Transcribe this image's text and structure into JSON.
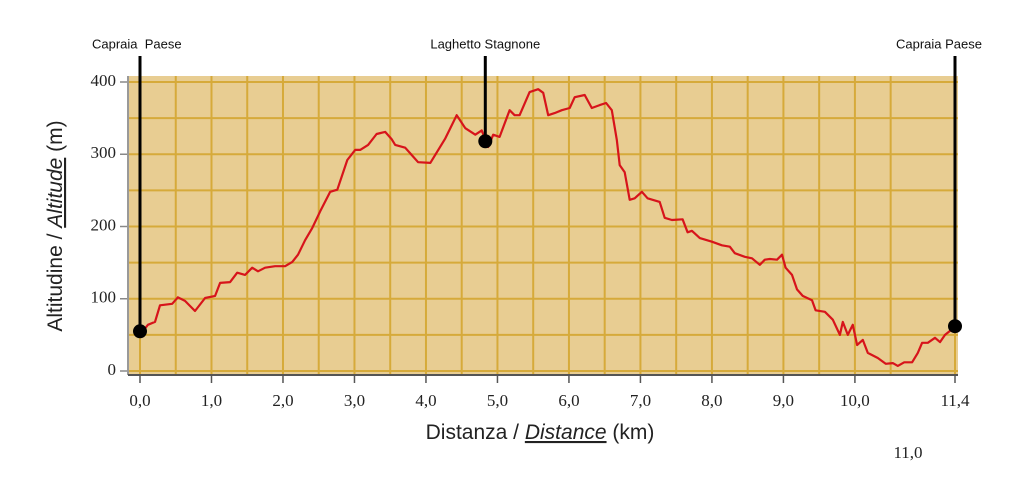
{
  "chart_data": {
    "type": "line",
    "ylabel": [
      "Altitudine / ",
      "Altitude",
      " (m)"
    ],
    "xlabel": [
      "Distanza / ",
      "Distance",
      " (km)"
    ],
    "xlim": [
      0,
      11.4
    ],
    "ylim": [
      0,
      400
    ],
    "xticks": [
      {
        "value": 0,
        "label": "0,0"
      },
      {
        "value": 1,
        "label": "1,0"
      },
      {
        "value": 2,
        "label": "2,0"
      },
      {
        "value": 3,
        "label": "3,0"
      },
      {
        "value": 4,
        "label": "4,0"
      },
      {
        "value": 5,
        "label": "5,0"
      },
      {
        "value": 6,
        "label": "6,0"
      },
      {
        "value": 7,
        "label": "7,0"
      },
      {
        "value": 8,
        "label": "8,0"
      },
      {
        "value": 9,
        "label": "9,0"
      },
      {
        "value": 10,
        "label": "10,0"
      },
      {
        "value": 11.4,
        "label": "11,4"
      }
    ],
    "yticks": [
      0,
      100,
      200,
      300,
      400
    ],
    "grid": true,
    "background": "#e8cd92",
    "grid_color": "#d6aa3a",
    "x": [
      0,
      0.11,
      0.21,
      0.28,
      0.45,
      0.53,
      0.63,
      0.77,
      0.91,
      1.05,
      1.12,
      1.26,
      1.36,
      1.47,
      1.57,
      1.65,
      1.75,
      1.89,
      2.03,
      2.13,
      2.21,
      2.31,
      2.41,
      2.52,
      2.66,
      2.76,
      2.9,
      3.01,
      3.08,
      3.19,
      3.31,
      3.43,
      3.52,
      3.57,
      3.71,
      3.8,
      3.89,
      4.06,
      4.27,
      4.43,
      4.55,
      4.69,
      4.78,
      4.87,
      4.94,
      5.03,
      5.17,
      5.24,
      5.31,
      5.45,
      5.57,
      5.64,
      5.71,
      5.8,
      5.9,
      6.01,
      6.08,
      6.22,
      6.32,
      6.43,
      6.52,
      6.6,
      6.67,
      6.71,
      6.78,
      6.85,
      6.92,
      7.02,
      7.1,
      7.27,
      7.34,
      7.44,
      7.59,
      7.66,
      7.72,
      7.83,
      8,
      8.14,
      8.25,
      8.32,
      8.46,
      8.56,
      8.67,
      8.74,
      8.81,
      8.91,
      8.98,
      9.03,
      9.12,
      9.19,
      9.27,
      9.4,
      9.45,
      9.58,
      9.69,
      9.79,
      9.83,
      9.9,
      9.97,
      10.03,
      10.11,
      10.18,
      10.32,
      10.43,
      10.53,
      10.6,
      10.69,
      10.8,
      10.88,
      10.94,
      11.02,
      11.12,
      11.19,
      11.26,
      11.4
    ],
    "series": [
      {
        "name": "Altitudine",
        "color": "#d7141b",
        "values": [
          50,
          64,
          68,
          91,
          93,
          102,
          97,
          83,
          101,
          104,
          122,
          123,
          136,
          133,
          143,
          138,
          143,
          145,
          145,
          151,
          161,
          181,
          198,
          221,
          248,
          251,
          292,
          306,
          306,
          313,
          328,
          331,
          321,
          313,
          309,
          299,
          289,
          288,
          322,
          354,
          336,
          327,
          333,
          310,
          327,
          324,
          361,
          354,
          354,
          386,
          390,
          385,
          354,
          357,
          361,
          364,
          379,
          382,
          364,
          368,
          371,
          361,
          320,
          285,
          275,
          237,
          239,
          248,
          239,
          234,
          212,
          209,
          210,
          192,
          194,
          184,
          179,
          174,
          172,
          163,
          158,
          156,
          147,
          154,
          155,
          154,
          161,
          143,
          133,
          113,
          104,
          98,
          84,
          82,
          71,
          50,
          68,
          50,
          64,
          36,
          43,
          25,
          18,
          10,
          11,
          7,
          12,
          12,
          25,
          39,
          39,
          46,
          40,
          50,
          61
        ]
      }
    ],
    "annotations": [
      {
        "text": "Capraia  Paese",
        "x": 0,
        "y": 55
      },
      {
        "text": "Laghetto Stagnone",
        "x": 4.83,
        "y": 318
      },
      {
        "text": "Capraia Paese",
        "x": 11.4,
        "y": 62
      },
      {
        "text": "11,0"
      }
    ]
  }
}
